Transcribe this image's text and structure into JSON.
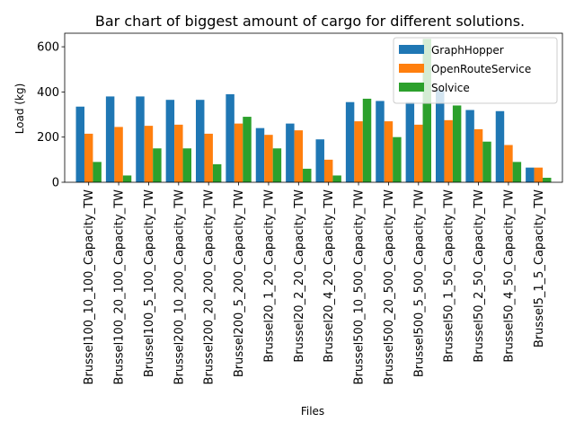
{
  "chart_data": {
    "type": "bar",
    "title": "Bar chart of biggest amount of cargo for different solutions.",
    "xlabel": "Files",
    "ylabel": "Load (kg)",
    "ylim": [
      0,
      660
    ],
    "yticks": [
      0,
      200,
      400,
      600
    ],
    "grid": false,
    "legend_position": "top-right",
    "categories": [
      "Brussel100_10_100_Capacity_TW",
      "Brussel100_20_100_Capacity_TW",
      "Brussel100_5_100_Capacity_TW",
      "Brussel200_10_200_Capacity_TW",
      "Brussel200_20_200_Capacity_TW",
      "Brussel200_5_200_Capacity_TW",
      "Brussel20_1_20_Capacity_TW",
      "Brussel20_2_20_Capacity_TW",
      "Brussel20_4_20_Capacity_TW",
      "Brussel500_10_500_Capacity_TW",
      "Brussel500_20_500_Capacity_TW",
      "Brussel500_5_500_Capacity_TW",
      "Brussel50_1_50_Capacity_TW",
      "Brussel50_2_50_Capacity_TW",
      "Brussel50_4_50_Capacity_TW",
      "Brussel5_1_5_Capacity_TW"
    ],
    "series": [
      {
        "name": "GraphHopper",
        "color": "#1f77b4",
        "values": [
          335,
          380,
          380,
          365,
          365,
          390,
          240,
          260,
          190,
          355,
          360,
          355,
          410,
          320,
          315,
          65
        ]
      },
      {
        "name": "OpenRouteService",
        "color": "#ff7f0e",
        "values": [
          215,
          245,
          250,
          255,
          215,
          260,
          210,
          230,
          100,
          270,
          270,
          255,
          275,
          235,
          165,
          65
        ]
      },
      {
        "name": "Solvice",
        "color": "#2ca02c",
        "values": [
          90,
          30,
          150,
          150,
          80,
          290,
          150,
          60,
          30,
          370,
          200,
          635,
          340,
          180,
          90,
          20
        ]
      }
    ]
  }
}
